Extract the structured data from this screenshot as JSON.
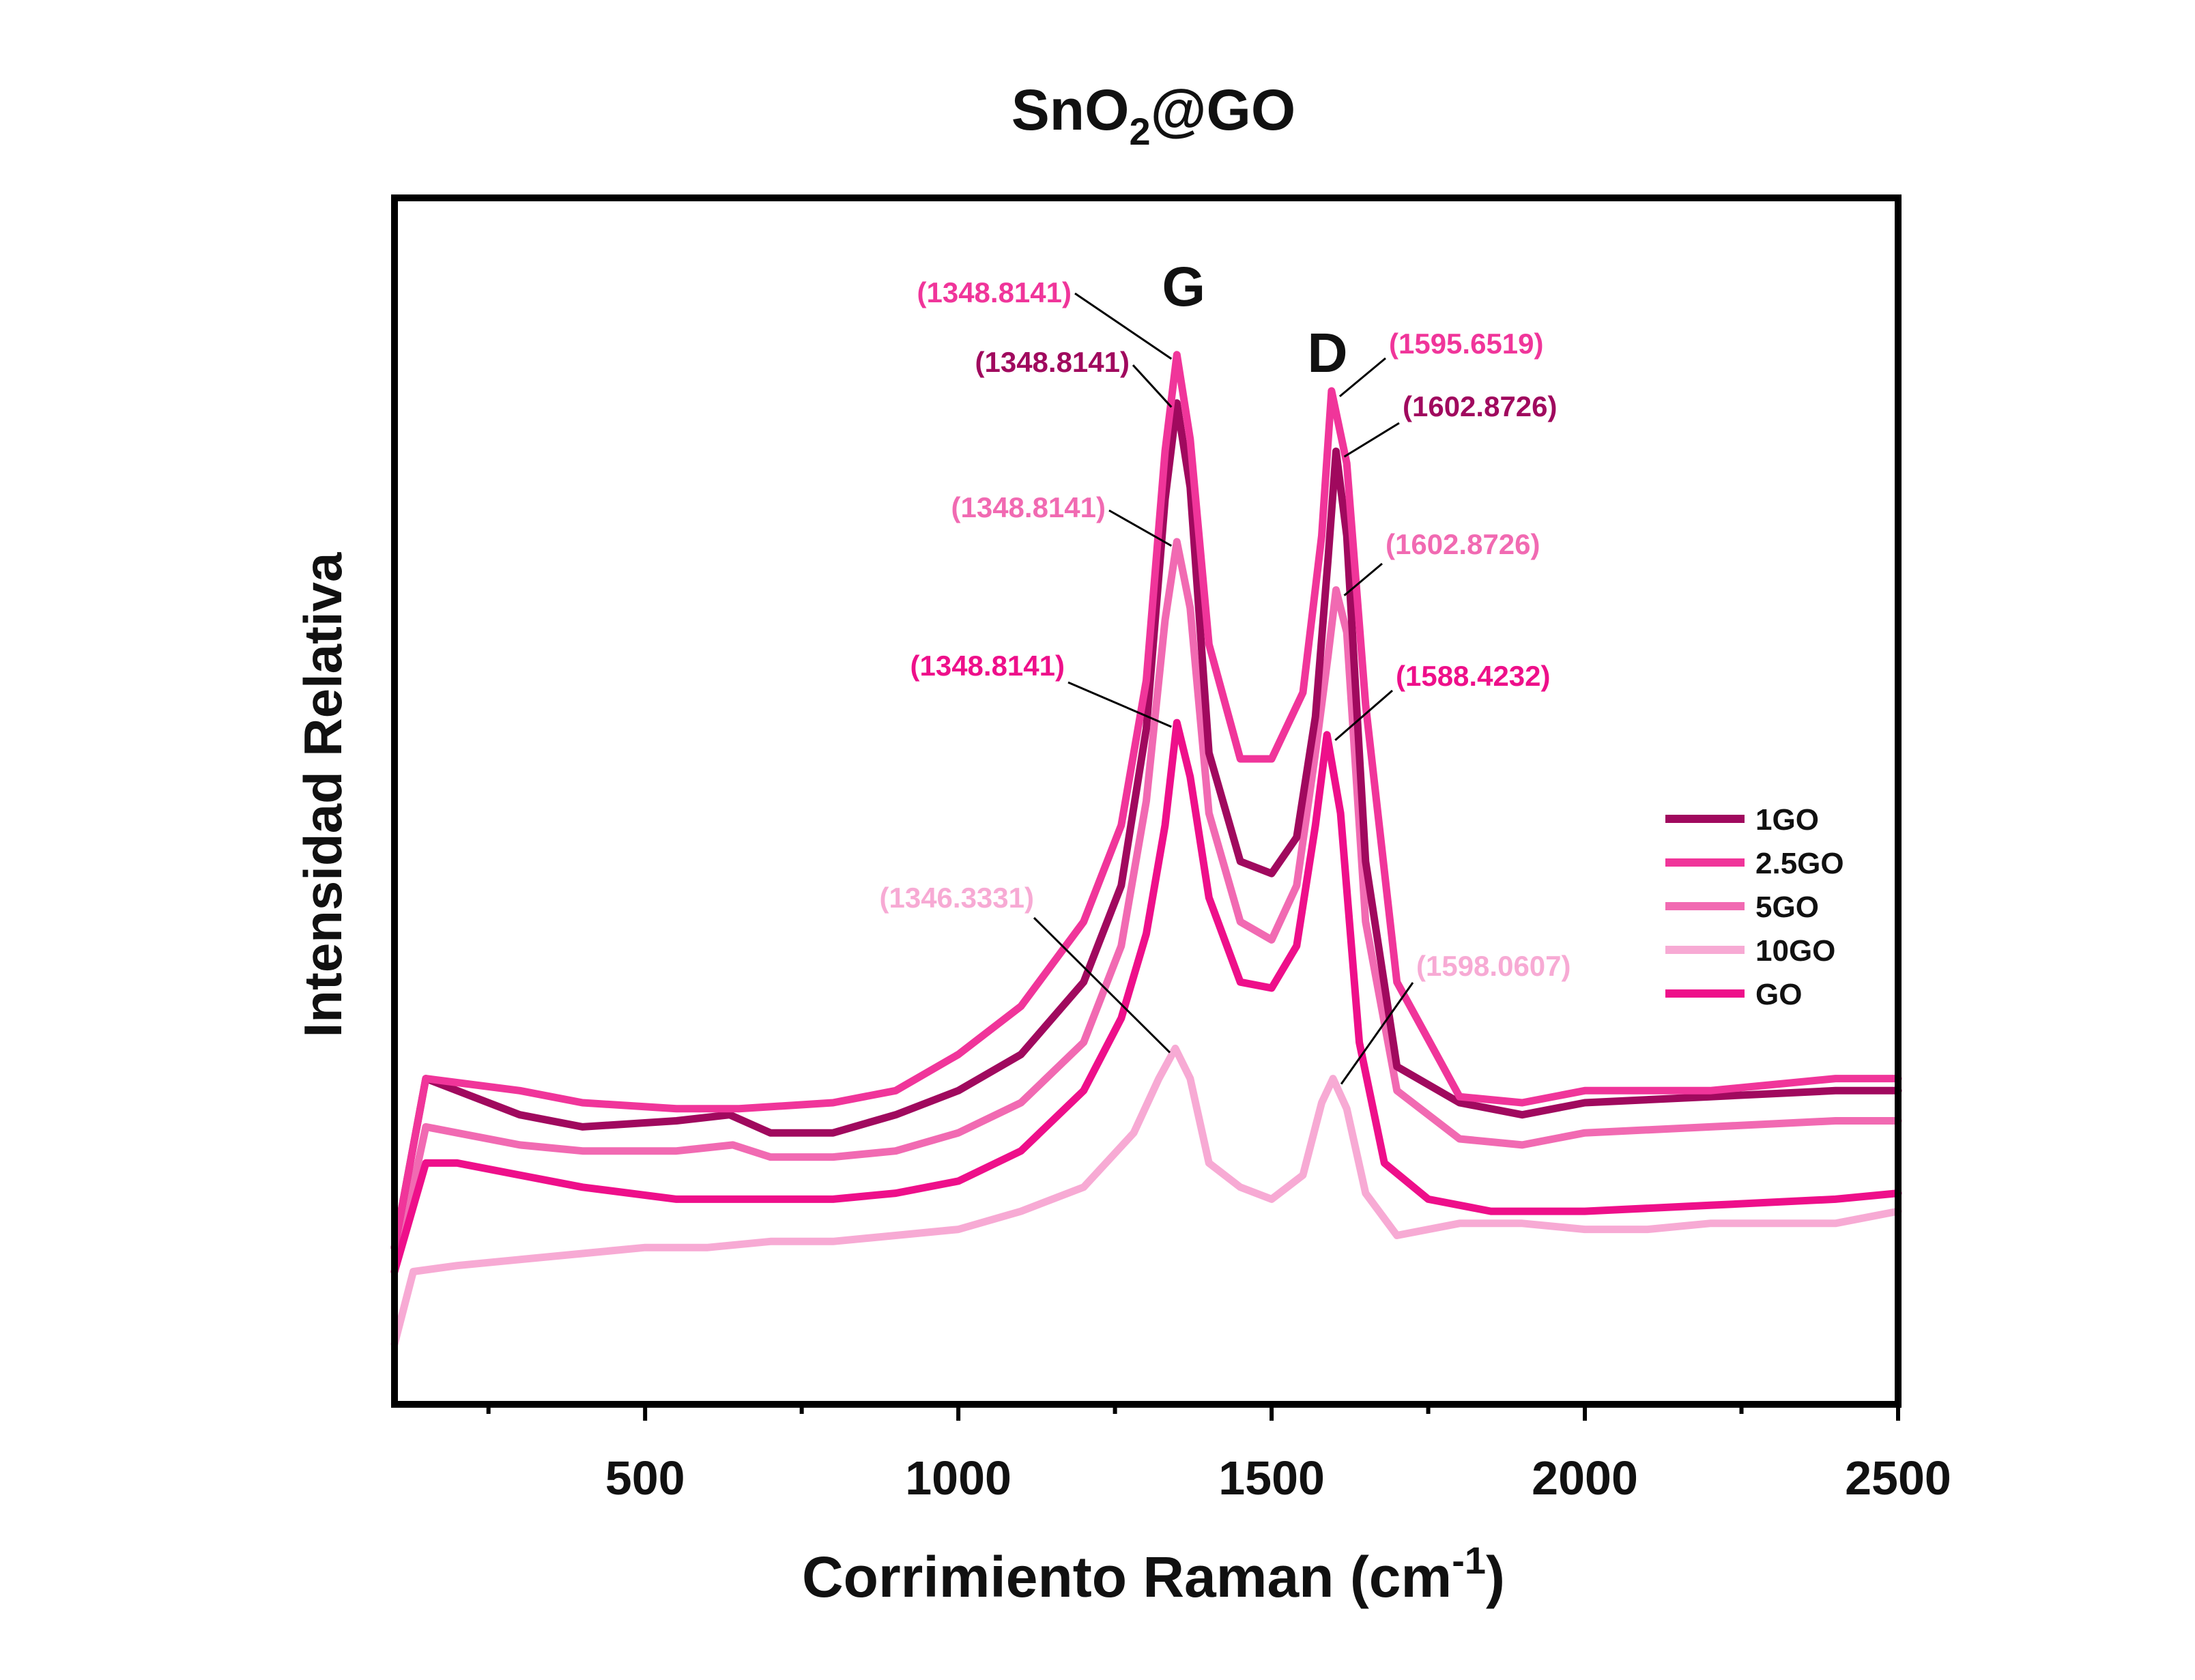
{
  "chart_data": {
    "type": "line",
    "title_main": "SnO",
    "title_sub": "2",
    "title_rest": "@GO",
    "xlabel_main": "Corrimiento Raman (cm",
    "xlabel_sup": "-1",
    "xlabel_end": ")",
    "ylabel": "Intensidad Relativa",
    "xlim": [
      100,
      2500
    ],
    "ylim": [
      0,
      100
    ],
    "x_ticks": [
      500,
      1000,
      1500,
      2000,
      2500
    ],
    "y_ticks_shown": false,
    "grid": false,
    "legend_position": "right",
    "peak_labels": [
      {
        "text": "G",
        "x": 1348.8
      },
      {
        "text": "D",
        "x": 1598
      }
    ],
    "series": [
      {
        "name": "1GO",
        "color": "#a0095e",
        "points": [
          [
            100,
            13
          ],
          [
            150,
            27
          ],
          [
            300,
            24
          ],
          [
            400,
            23
          ],
          [
            550,
            23.5
          ],
          [
            635,
            24
          ],
          [
            700,
            22.5
          ],
          [
            800,
            22.5
          ],
          [
            900,
            24
          ],
          [
            1000,
            26
          ],
          [
            1100,
            29
          ],
          [
            1200,
            35
          ],
          [
            1260,
            43
          ],
          [
            1300,
            56
          ],
          [
            1330,
            75
          ],
          [
            1348.8,
            83
          ],
          [
            1370,
            76
          ],
          [
            1400,
            54
          ],
          [
            1450,
            45
          ],
          [
            1500,
            44
          ],
          [
            1540,
            47
          ],
          [
            1570,
            57
          ],
          [
            1590,
            70
          ],
          [
            1602.9,
            79
          ],
          [
            1620,
            72
          ],
          [
            1650,
            45
          ],
          [
            1700,
            28
          ],
          [
            1800,
            25
          ],
          [
            1900,
            24
          ],
          [
            2000,
            25
          ],
          [
            2200,
            25.5
          ],
          [
            2400,
            26
          ],
          [
            2500,
            26
          ]
        ]
      },
      {
        "name": "2.5GO",
        "color": "#f0359a",
        "points": [
          [
            100,
            13
          ],
          [
            150,
            27
          ],
          [
            300,
            26
          ],
          [
            400,
            25
          ],
          [
            550,
            24.5
          ],
          [
            650,
            24.5
          ],
          [
            800,
            25
          ],
          [
            900,
            26
          ],
          [
            1000,
            29
          ],
          [
            1100,
            33
          ],
          [
            1200,
            40
          ],
          [
            1260,
            48
          ],
          [
            1300,
            60
          ],
          [
            1330,
            79
          ],
          [
            1348.8,
            87
          ],
          [
            1370,
            80
          ],
          [
            1400,
            63
          ],
          [
            1450,
            53.5
          ],
          [
            1500,
            53.5
          ],
          [
            1550,
            59
          ],
          [
            1580,
            72
          ],
          [
            1595.7,
            84
          ],
          [
            1620,
            78
          ],
          [
            1650,
            58
          ],
          [
            1700,
            35
          ],
          [
            1800,
            25.5
          ],
          [
            1900,
            25
          ],
          [
            2000,
            26
          ],
          [
            2200,
            26
          ],
          [
            2400,
            27
          ],
          [
            2500,
            27
          ]
        ]
      },
      {
        "name": "5GO",
        "color": "#f16ab2",
        "points": [
          [
            100,
            11
          ],
          [
            150,
            23
          ],
          [
            300,
            21.5
          ],
          [
            400,
            21
          ],
          [
            550,
            21
          ],
          [
            640,
            21.5
          ],
          [
            700,
            20.5
          ],
          [
            800,
            20.5
          ],
          [
            900,
            21
          ],
          [
            1000,
            22.5
          ],
          [
            1100,
            25
          ],
          [
            1200,
            30
          ],
          [
            1260,
            38
          ],
          [
            1300,
            50
          ],
          [
            1330,
            65
          ],
          [
            1348.8,
            71.5
          ],
          [
            1370,
            66
          ],
          [
            1400,
            49
          ],
          [
            1450,
            40
          ],
          [
            1500,
            38.5
          ],
          [
            1540,
            43
          ],
          [
            1570,
            54
          ],
          [
            1590,
            62
          ],
          [
            1602.9,
            67.5
          ],
          [
            1620,
            64
          ],
          [
            1650,
            40
          ],
          [
            1700,
            26
          ],
          [
            1800,
            22
          ],
          [
            1900,
            21.5
          ],
          [
            2000,
            22.5
          ],
          [
            2200,
            23
          ],
          [
            2400,
            23.5
          ],
          [
            2500,
            23.5
          ]
        ]
      },
      {
        "name": "10GO",
        "color": "#f7aad4",
        "points": [
          [
            100,
            5
          ],
          [
            130,
            11
          ],
          [
            200,
            11.5
          ],
          [
            300,
            12
          ],
          [
            400,
            12.5
          ],
          [
            500,
            13
          ],
          [
            600,
            13
          ],
          [
            700,
            13.5
          ],
          [
            800,
            13.5
          ],
          [
            900,
            14
          ],
          [
            1000,
            14.5
          ],
          [
            1100,
            16
          ],
          [
            1200,
            18
          ],
          [
            1280,
            22.5
          ],
          [
            1320,
            27
          ],
          [
            1346.3,
            29.5
          ],
          [
            1370,
            27
          ],
          [
            1400,
            20
          ],
          [
            1450,
            18
          ],
          [
            1500,
            17
          ],
          [
            1550,
            19
          ],
          [
            1580,
            25
          ],
          [
            1598.1,
            27
          ],
          [
            1620,
            24.5
          ],
          [
            1650,
            17.5
          ],
          [
            1700,
            14
          ],
          [
            1800,
            15
          ],
          [
            1900,
            15
          ],
          [
            2000,
            14.5
          ],
          [
            2100,
            14.5
          ],
          [
            2200,
            15
          ],
          [
            2400,
            15
          ],
          [
            2500,
            16
          ]
        ]
      },
      {
        "name": "GO",
        "color": "#ee0f8a",
        "points": [
          [
            100,
            11
          ],
          [
            150,
            20
          ],
          [
            200,
            20
          ],
          [
            300,
            19
          ],
          [
            400,
            18
          ],
          [
            550,
            17
          ],
          [
            650,
            17
          ],
          [
            800,
            17
          ],
          [
            900,
            17.5
          ],
          [
            1000,
            18.5
          ],
          [
            1100,
            21
          ],
          [
            1200,
            26
          ],
          [
            1260,
            32
          ],
          [
            1300,
            39
          ],
          [
            1330,
            48
          ],
          [
            1348.8,
            56.5
          ],
          [
            1370,
            52
          ],
          [
            1400,
            42
          ],
          [
            1450,
            35
          ],
          [
            1500,
            34.5
          ],
          [
            1540,
            38
          ],
          [
            1570,
            48
          ],
          [
            1588.4,
            55.5
          ],
          [
            1610,
            49
          ],
          [
            1640,
            30
          ],
          [
            1680,
            20
          ],
          [
            1750,
            17
          ],
          [
            1850,
            16
          ],
          [
            2000,
            16
          ],
          [
            2200,
            16.5
          ],
          [
            2400,
            17
          ],
          [
            2500,
            17.5
          ]
        ]
      }
    ],
    "annotations": [
      {
        "text": "(1348.8141)",
        "series": "2.5GO",
        "x": 1348.8
      },
      {
        "text": "(1348.8141)",
        "series": "1GO",
        "x": 1348.8
      },
      {
        "text": "(1348.8141)",
        "series": "5GO",
        "x": 1348.8
      },
      {
        "text": "(1348.8141)",
        "series": "GO",
        "x": 1348.8
      },
      {
        "text": "(1346.3331)",
        "series": "10GO",
        "x": 1346.3
      },
      {
        "text": "(1595.6519)",
        "series": "2.5GO",
        "x": 1595.7
      },
      {
        "text": "(1602.8726)",
        "series": "1GO",
        "x": 1602.9
      },
      {
        "text": "(1602.8726)",
        "series": "5GO",
        "x": 1602.9
      },
      {
        "text": "(1588.4232)",
        "series": "GO",
        "x": 1588.4
      },
      {
        "text": "(1598.0607)",
        "series": "10GO",
        "x": 1598.1
      }
    ]
  }
}
